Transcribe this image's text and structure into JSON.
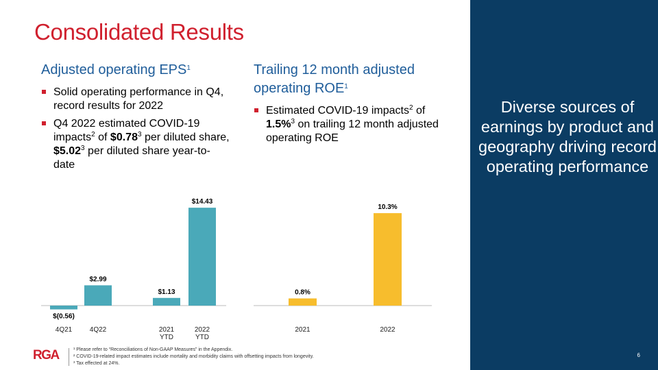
{
  "title": "Consolidated Results",
  "left": {
    "heading": "Adjusted operating EPS",
    "heading_sup": "1",
    "bullet1": "Solid operating performance in Q4, record results for 2022",
    "bullet2": {
      "a": "Q4 2022 estimated COVID-19 impacts",
      "s1": "2",
      "b": " of ",
      "c": "$0.78",
      "s2": "3",
      "d": " per diluted share, ",
      "e": "$5.02",
      "s3": "3",
      "f": " per diluted share year-to-date"
    }
  },
  "right": {
    "heading": "Trailing 12 month adjusted operating ROE",
    "heading_sup": "1",
    "bullet1": {
      "a": "Estimated COVID-19 impacts",
      "s1": "2",
      "b": " of ",
      "c": "1.5%",
      "s2": "3",
      "d": " on trailing 12 month adjusted operating ROE"
    }
  },
  "side_text": "Diverse sources of earnings by product and geography driving record operating performance",
  "page_number": "6",
  "logo": "RGA",
  "footnotes": [
    "¹ Please refer to “Reconciliations of Non-GAAP Measures” in the Appendix.",
    "² COVID-19-related impact estimates include mortality and morbidity claims with offsetting impacts from longevity.",
    "³ Tax effected at 24%."
  ],
  "colors": {
    "eps_bar": "#4aa9b9",
    "roe_bar": "#f7bd2d",
    "title": "#d0202e",
    "side": "#0b3c63"
  },
  "chart_data": [
    {
      "type": "bar",
      "categories": [
        [
          "4Q21"
        ],
        [
          "4Q22"
        ],
        [
          "2021",
          "YTD"
        ],
        [
          "2022",
          "YTD"
        ]
      ],
      "values": [
        -0.56,
        2.99,
        1.13,
        14.43
      ],
      "labels": [
        "$(0.56)",
        "$2.99",
        "$1.13",
        "$14.43"
      ]
    },
    {
      "type": "bar",
      "categories": [
        [
          "2021"
        ],
        [
          "2022"
        ]
      ],
      "values": [
        0.8,
        10.3
      ],
      "labels": [
        "0.8%",
        "10.3%"
      ]
    }
  ]
}
